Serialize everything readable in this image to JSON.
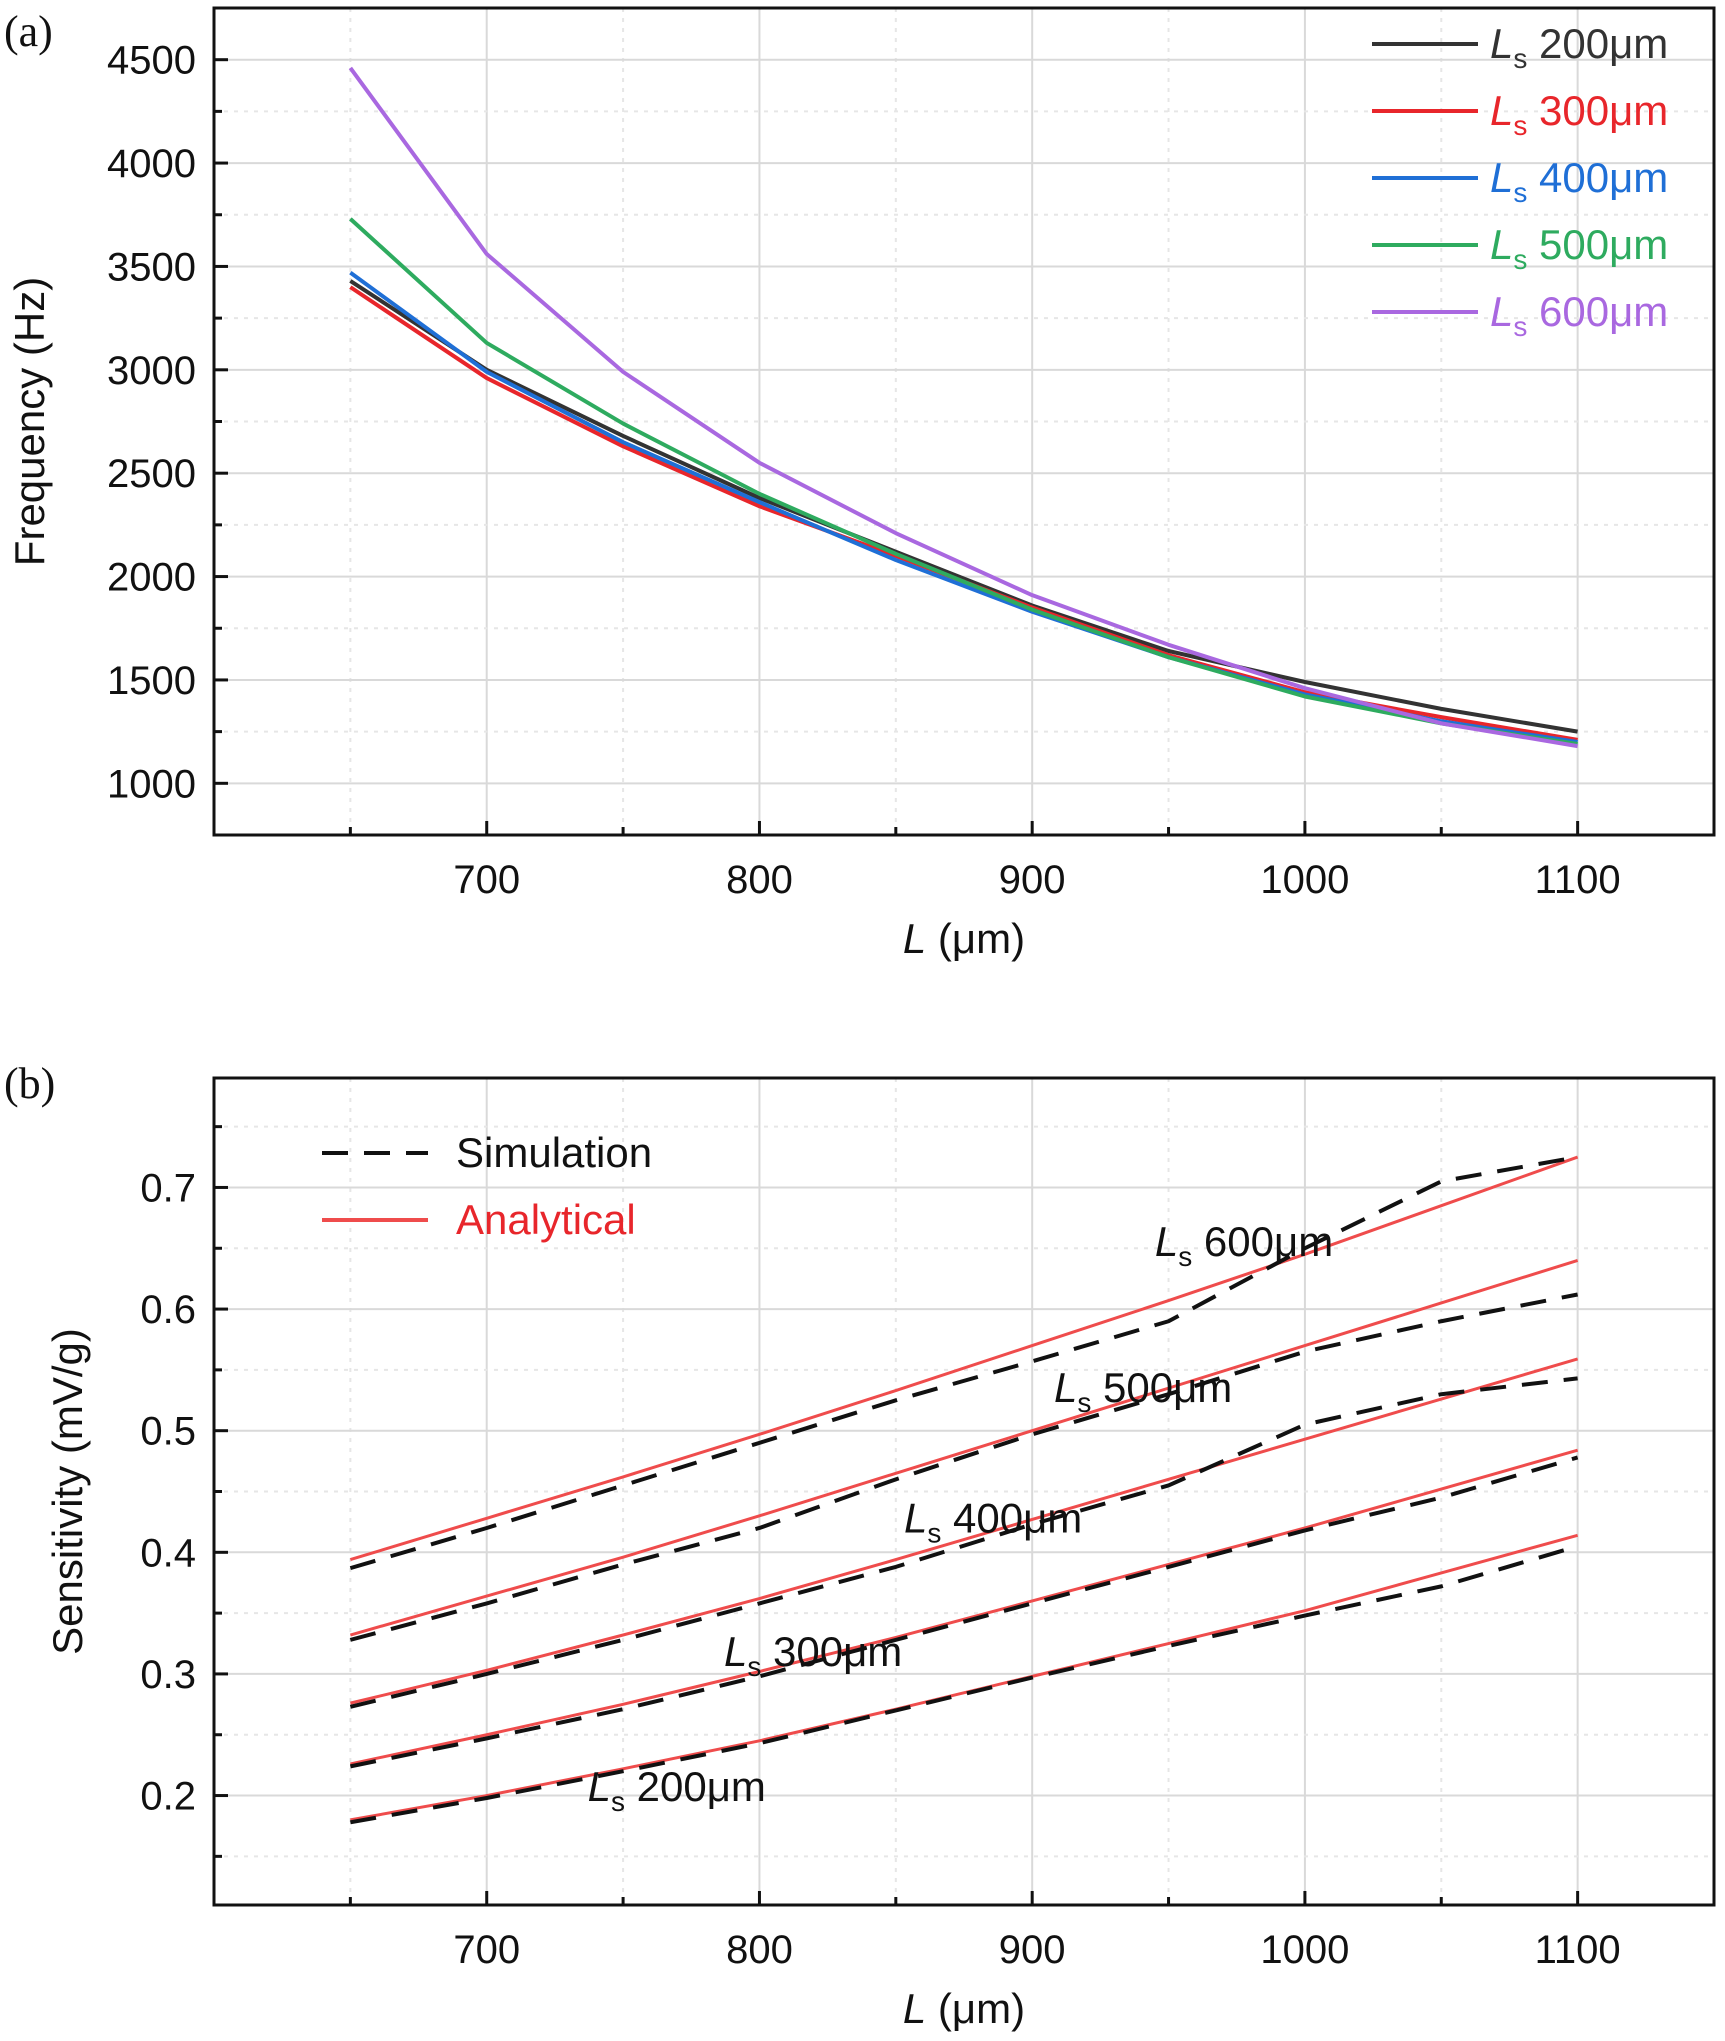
{
  "chart_data": [
    {
      "type": "line",
      "panel_label": "(a)",
      "xlabel": {
        "var": "L",
        "unit": "(μm)"
      },
      "ylabel": "Frequency (Hz)",
      "xlim": [
        600,
        1150
      ],
      "ylim": [
        750,
        4750
      ],
      "xticks": [
        700,
        800,
        900,
        1000,
        1100
      ],
      "yticks": [
        1000,
        1500,
        2000,
        2500,
        3000,
        3500,
        4000,
        4500
      ],
      "grid": true,
      "legend_position": "top-right",
      "x": [
        650,
        700,
        750,
        800,
        850,
        900,
        950,
        1000,
        1050,
        1100
      ],
      "series": [
        {
          "name": "200μm",
          "name_prefix": "L",
          "name_sub": "s",
          "color": "#333333",
          "values": [
            3430,
            3000,
            2680,
            2380,
            2120,
            1860,
            1640,
            1490,
            1360,
            1250
          ]
        },
        {
          "name": "300μm",
          "name_prefix": "L",
          "name_sub": "s",
          "color": "#e8262b",
          "values": [
            3400,
            2960,
            2630,
            2340,
            2100,
            1850,
            1620,
            1440,
            1320,
            1210
          ]
        },
        {
          "name": "400μm",
          "name_prefix": "L",
          "name_sub": "s",
          "color": "#1f6fd6",
          "values": [
            3470,
            2990,
            2650,
            2360,
            2080,
            1830,
            1610,
            1430,
            1300,
            1200
          ]
        },
        {
          "name": "500μm",
          "name_prefix": "L",
          "name_sub": "s",
          "color": "#2eab5f",
          "values": [
            3730,
            3130,
            2740,
            2400,
            2110,
            1840,
            1610,
            1420,
            1290,
            1190
          ]
        },
        {
          "name": "600μm",
          "name_prefix": "L",
          "name_sub": "s",
          "color": "#a968e0",
          "values": [
            4460,
            3560,
            2990,
            2550,
            2210,
            1910,
            1670,
            1460,
            1290,
            1180
          ]
        }
      ]
    },
    {
      "type": "line",
      "panel_label": "(b)",
      "xlabel": {
        "var": "L",
        "unit": "(μm)"
      },
      "ylabel": "Sensitivity (mV/g)",
      "xlim": [
        600,
        1150
      ],
      "ylim": [
        0.11,
        0.79
      ],
      "xticks": [
        700,
        800,
        900,
        1000,
        1100
      ],
      "yticks": [
        0.2,
        0.3,
        0.4,
        0.5,
        0.6,
        0.7
      ],
      "grid": true,
      "legend_position": "top-left",
      "legend": [
        {
          "label": "Simulation",
          "style": "dashed",
          "color": "#111111"
        },
        {
          "label": "Analytical",
          "style": "solid",
          "color": "#e8262b"
        }
      ],
      "x": [
        650,
        700,
        750,
        800,
        850,
        900,
        950,
        1000,
        1050,
        1100
      ],
      "series": [
        {
          "group": "200μm",
          "kind": "Analytical",
          "values": [
            0.18,
            0.2,
            0.222,
            0.245,
            0.271,
            0.298,
            0.325,
            0.352,
            0.383,
            0.414
          ]
        },
        {
          "group": "200μm",
          "kind": "Simulation",
          "values": [
            0.178,
            0.198,
            0.22,
            0.243,
            0.27,
            0.297,
            0.323,
            0.348,
            0.372,
            0.405
          ]
        },
        {
          "group": "300μm",
          "kind": "Analytical",
          "values": [
            0.226,
            0.25,
            0.275,
            0.302,
            0.33,
            0.36,
            0.39,
            0.42,
            0.452,
            0.484
          ]
        },
        {
          "group": "300μm",
          "kind": "Simulation",
          "values": [
            0.224,
            0.247,
            0.271,
            0.298,
            0.328,
            0.358,
            0.388,
            0.418,
            0.445,
            0.478
          ]
        },
        {
          "group": "400μm",
          "kind": "Analytical",
          "values": [
            0.276,
            0.303,
            0.332,
            0.362,
            0.394,
            0.427,
            0.46,
            0.493,
            0.526,
            0.559
          ]
        },
        {
          "group": "400μm",
          "kind": "Simulation",
          "values": [
            0.273,
            0.3,
            0.328,
            0.358,
            0.388,
            0.423,
            0.455,
            0.505,
            0.53,
            0.543
          ]
        },
        {
          "group": "500μm",
          "kind": "Analytical",
          "values": [
            0.332,
            0.364,
            0.396,
            0.43,
            0.465,
            0.5,
            0.535,
            0.57,
            0.605,
            0.64
          ]
        },
        {
          "group": "500μm",
          "kind": "Simulation",
          "values": [
            0.328,
            0.358,
            0.39,
            0.42,
            0.46,
            0.497,
            0.53,
            0.565,
            0.59,
            0.612
          ]
        },
        {
          "group": "600μm",
          "kind": "Analytical",
          "values": [
            0.394,
            0.428,
            0.462,
            0.497,
            0.533,
            0.57,
            0.607,
            0.645,
            0.685,
            0.725
          ]
        },
        {
          "group": "600μm",
          "kind": "Simulation",
          "values": [
            0.387,
            0.42,
            0.455,
            0.49,
            0.525,
            0.557,
            0.59,
            0.65,
            0.705,
            0.725
          ]
        }
      ],
      "annotations": [
        {
          "prefix": "L",
          "sub": "s",
          "text": "600μm",
          "at": [
            945,
            0.655
          ]
        },
        {
          "prefix": "L",
          "sub": "s",
          "text": "500μm",
          "at": [
            908,
            0.535
          ]
        },
        {
          "prefix": "L",
          "sub": "s",
          "text": "400μm",
          "at": [
            853,
            0.428
          ]
        },
        {
          "prefix": "L",
          "sub": "s",
          "text": "300μm",
          "at": [
            787,
            0.318
          ]
        },
        {
          "prefix": "L",
          "sub": "s",
          "text": "200μm",
          "at": [
            737,
            0.207
          ]
        }
      ]
    }
  ]
}
